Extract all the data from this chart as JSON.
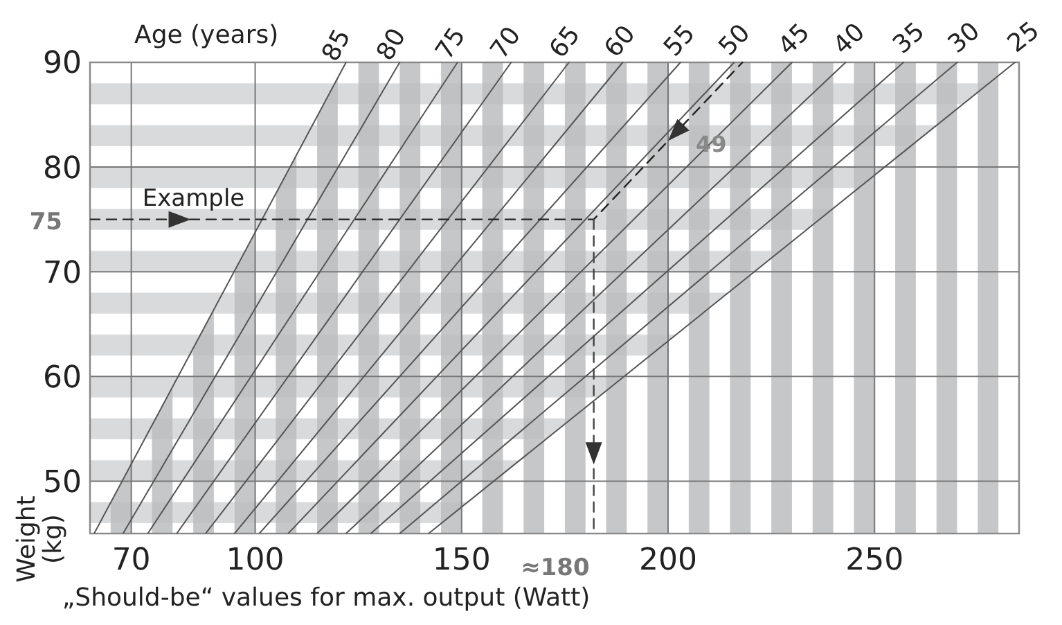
{
  "chart_data": {
    "type": "line",
    "xlabel": "„Should-be“ values for max. output (Watt)",
    "ylabel": "Weight (kg)",
    "xlim": [
      60,
      285
    ],
    "ylim": [
      45,
      90
    ],
    "xticks": [
      70,
      100,
      150,
      200,
      250
    ],
    "yticks": [
      50,
      60,
      70,
      80,
      90
    ],
    "grid": true,
    "legend": "top",
    "marker": "none",
    "line_style": "solid",
    "series": [
      {
        "name": "85",
        "color": "#555555",
        "x": [
          61,
          122
        ],
        "values": [
          45,
          90
        ]
      },
      {
        "name": "80",
        "color": "#555555",
        "x": [
          68,
          135
        ],
        "values": [
          45,
          90
        ]
      },
      {
        "name": "75",
        "color": "#555555",
        "x": [
          74,
          149
        ],
        "values": [
          45,
          90
        ]
      },
      {
        "name": "70",
        "color": "#555555",
        "x": [
          81,
          162
        ],
        "values": [
          45,
          90
        ]
      },
      {
        "name": "65",
        "color": "#555555",
        "x": [
          88,
          176
        ],
        "values": [
          45,
          90
        ]
      },
      {
        "name": "60",
        "color": "#555555",
        "x": [
          95,
          189
        ],
        "values": [
          45,
          90
        ]
      },
      {
        "name": "55",
        "color": "#555555",
        "x": [
          101,
          203
        ],
        "values": [
          45,
          90
        ]
      },
      {
        "name": "50",
        "color": "#555555",
        "x": [
          108,
          216
        ],
        "values": [
          45,
          90
        ]
      },
      {
        "name": "45",
        "color": "#555555",
        "x": [
          115,
          230
        ],
        "values": [
          45,
          90
        ]
      },
      {
        "name": "40",
        "color": "#555555",
        "x": [
          122,
          243
        ],
        "values": [
          45,
          90
        ]
      },
      {
        "name": "35",
        "color": "#555555",
        "x": [
          128,
          257
        ],
        "values": [
          45,
          90
        ]
      },
      {
        "name": "30",
        "color": "#555555",
        "x": [
          135,
          270
        ],
        "values": [
          45,
          90
        ]
      },
      {
        "name": "25",
        "color": "#555555",
        "x": [
          142,
          284
        ],
        "values": [
          45,
          90
        ]
      },
      {
        "color": "#222222",
        "line_style": "dashed",
        "x": [
          60,
          182,
          218
        ],
        "values": [
          75,
          75,
          90
        ]
      },
      {
        "color": "#444444",
        "line_style": "dashed",
        "x": [
          182,
          182
        ],
        "values": [
          75,
          45
        ]
      }
    ],
    "annotations": [
      "Age (years)",
      "Example",
      {
        "text": "75",
        "x": 60,
        "y": 75
      },
      "49",
      {
        "text": "≈180",
        "x": 182,
        "y": 45
      }
    ]
  }
}
